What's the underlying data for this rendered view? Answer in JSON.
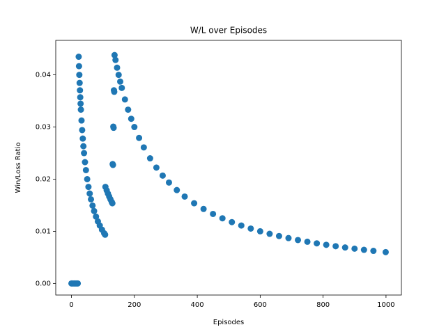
{
  "chart_data": {
    "type": "scatter",
    "title": "W/L over Episodes",
    "x_label": "Episodes",
    "y_label": "Win/Loss Ratio",
    "color": "#1f77b4",
    "x": [
      0,
      4,
      8,
      12,
      16,
      20,
      23,
      24,
      25,
      26,
      27,
      28,
      29,
      30,
      32,
      34,
      36,
      38,
      40,
      43,
      46,
      50,
      54,
      58,
      62,
      67,
      72,
      78,
      84,
      90,
      97,
      104,
      107,
      108,
      112,
      116,
      120,
      124,
      128,
      130,
      131,
      132,
      133,
      134,
      135,
      136,
      137,
      140,
      145,
      150,
      155,
      160,
      170,
      180,
      190,
      200,
      215,
      230,
      250,
      270,
      290,
      310,
      335,
      360,
      390,
      420,
      450,
      480,
      510,
      540,
      570,
      600,
      630,
      660,
      690,
      720,
      750,
      780,
      810,
      840,
      870,
      900,
      930,
      960,
      999
    ],
    "values": [
      0,
      0,
      0,
      0,
      0,
      0,
      0.04348,
      0.04167,
      0.04,
      0.03846,
      0.03704,
      0.03571,
      0.03448,
      0.03333,
      0.03125,
      0.02941,
      0.02778,
      0.02632,
      0.025,
      0.02326,
      0.02174,
      0.02,
      0.01852,
      0.01724,
      0.01613,
      0.01493,
      0.01389,
      0.01282,
      0.0119,
      0.01111,
      0.01031,
      0.00962,
      0.00935,
      0.01852,
      0.01786,
      0.01724,
      0.01667,
      0.01613,
      0.01563,
      0.01538,
      0.0229,
      0.02273,
      0.03008,
      0.02985,
      0.03704,
      0.03676,
      0.0438,
      0.04286,
      0.04138,
      0.04,
      0.03871,
      0.0375,
      0.03529,
      0.03333,
      0.03158,
      0.03,
      0.02791,
      0.02609,
      0.024,
      0.02222,
      0.02069,
      0.01935,
      0.01791,
      0.01667,
      0.01538,
      0.01429,
      0.01333,
      0.0125,
      0.01176,
      0.01111,
      0.01053,
      0.01,
      0.00952,
      0.00909,
      0.0087,
      0.00833,
      0.008,
      0.00769,
      0.00741,
      0.00714,
      0.0069,
      0.00667,
      0.00645,
      0.00625,
      0.00601
    ],
    "xlim": [
      -49.95,
      1048.95
    ],
    "ylim": [
      -0.00222,
      0.04662
    ],
    "xticks": [
      0,
      200,
      400,
      600,
      800,
      1000
    ],
    "yticks": [
      {
        "value": 0,
        "label": "0.00"
      },
      {
        "value": 0.01,
        "label": "0.01"
      },
      {
        "value": 0.02,
        "label": "0.02"
      },
      {
        "value": 0.03,
        "label": "0.03"
      },
      {
        "value": 0.04,
        "label": "0.04"
      }
    ]
  }
}
